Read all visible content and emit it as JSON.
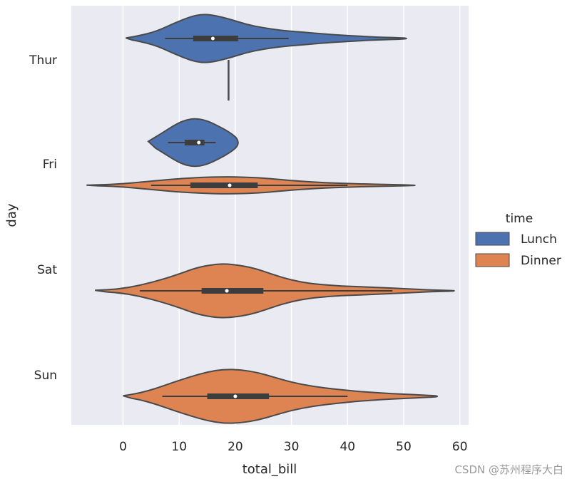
{
  "chart_data": {
    "type": "violin",
    "orientation": "horizontal",
    "xlabel": "total_bill",
    "ylabel": "day",
    "xlim": [
      -9,
      61
    ],
    "xticks": [
      0,
      10,
      20,
      30,
      40,
      50,
      60
    ],
    "categories": [
      "Thur",
      "Fri",
      "Sat",
      "Sun"
    ],
    "legend": {
      "title": "time",
      "placement": "center-right, outside plot",
      "entries": [
        {
          "name": "Lunch",
          "color": "#4c72b0"
        },
        {
          "name": "Dinner",
          "color": "#dd8452"
        }
      ]
    },
    "grid": true,
    "background": "#eaeaf2",
    "series": [
      {
        "name": "Lunch",
        "color": "#4c72b0",
        "violins": [
          {
            "day": "Thur",
            "side": "upper",
            "min": 0.5,
            "q1": 12.5,
            "median": 16.0,
            "q3": 20.5,
            "max": 50.5,
            "whisker_low": 7.5,
            "whisker_high": 29.5,
            "profile": [
              [
                0.5,
                0.02
              ],
              [
                3,
                0.12
              ],
              [
                6,
                0.3
              ],
              [
                9,
                0.62
              ],
              [
                12,
                0.9
              ],
              [
                14,
                1.0
              ],
              [
                16,
                0.97
              ],
              [
                19,
                0.8
              ],
              [
                22,
                0.58
              ],
              [
                25,
                0.44
              ],
              [
                28,
                0.34
              ],
              [
                31,
                0.28
              ],
              [
                35,
                0.2
              ],
              [
                40,
                0.12
              ],
              [
                45,
                0.06
              ],
              [
                50.5,
                0.02
              ]
            ]
          },
          {
            "day": "Fri",
            "side": "upper",
            "min": 4.5,
            "q1": 11.0,
            "median": 13.5,
            "q3": 14.5,
            "max": 20.5,
            "whisker_low": 8.0,
            "whisker_high": 16.5,
            "profile": [
              [
                4.5,
                0.05
              ],
              [
                7,
                0.4
              ],
              [
                9,
                0.7
              ],
              [
                11,
                0.93
              ],
              [
                13,
                1.0
              ],
              [
                15,
                0.9
              ],
              [
                17,
                0.68
              ],
              [
                19,
                0.42
              ],
              [
                20.5,
                0.15
              ]
            ]
          }
        ]
      },
      {
        "name": "Dinner",
        "color": "#dd8452",
        "violins": [
          {
            "day": "Thur",
            "side": "stub",
            "value": 18.8
          },
          {
            "day": "Fri",
            "side": "lower",
            "min": -6.5,
            "q1": 12.0,
            "median": 19.0,
            "q3": 24.0,
            "max": 52.0,
            "whisker_low": 5.0,
            "whisker_high": 40.0,
            "profile": [
              [
                -6.5,
                0.02
              ],
              [
                -2,
                0.1
              ],
              [
                2,
                0.3
              ],
              [
                6,
                0.55
              ],
              [
                10,
                0.78
              ],
              [
                14,
                0.93
              ],
              [
                18,
                1.0
              ],
              [
                22,
                0.96
              ],
              [
                26,
                0.8
              ],
              [
                30,
                0.55
              ],
              [
                34,
                0.38
              ],
              [
                38,
                0.26
              ],
              [
                42,
                0.17
              ],
              [
                47,
                0.09
              ],
              [
                52,
                0.02
              ]
            ]
          },
          {
            "day": "Sat",
            "side": "full",
            "min": -5.0,
            "q1": 14.0,
            "median": 18.5,
            "q3": 25.0,
            "max": 59.0,
            "whisker_low": 3.0,
            "whisker_high": 48.0,
            "profile": [
              [
                -5,
                0.02
              ],
              [
                -1,
                0.06
              ],
              [
                3,
                0.2
              ],
              [
                7,
                0.42
              ],
              [
                10,
                0.62
              ],
              [
                13,
                0.85
              ],
              [
                16,
                0.97
              ],
              [
                18,
                1.0
              ],
              [
                21,
                0.94
              ],
              [
                24,
                0.8
              ],
              [
                27,
                0.58
              ],
              [
                30,
                0.4
              ],
              [
                33,
                0.28
              ],
              [
                37,
                0.2
              ],
              [
                41,
                0.16
              ],
              [
                45,
                0.13
              ],
              [
                50,
                0.08
              ],
              [
                55,
                0.03
              ],
              [
                59,
                0.01
              ]
            ]
          },
          {
            "day": "Sun",
            "side": "full",
            "min": 0.0,
            "q1": 15.0,
            "median": 20.0,
            "q3": 26.0,
            "max": 56.0,
            "whisker_low": 7.0,
            "whisker_high": 40.0,
            "profile": [
              [
                0,
                0.02
              ],
              [
                3,
                0.12
              ],
              [
                6,
                0.3
              ],
              [
                9,
                0.52
              ],
              [
                12,
                0.72
              ],
              [
                15,
                0.9
              ],
              [
                18,
                1.0
              ],
              [
                21,
                0.98
              ],
              [
                24,
                0.88
              ],
              [
                27,
                0.7
              ],
              [
                30,
                0.52
              ],
              [
                34,
                0.36
              ],
              [
                38,
                0.26
              ],
              [
                42,
                0.18
              ],
              [
                46,
                0.12
              ],
              [
                50,
                0.08
              ],
              [
                53,
                0.05
              ],
              [
                56,
                0.02
              ]
            ]
          }
        ]
      }
    ]
  },
  "watermark": "CSDN @苏州程序大白"
}
